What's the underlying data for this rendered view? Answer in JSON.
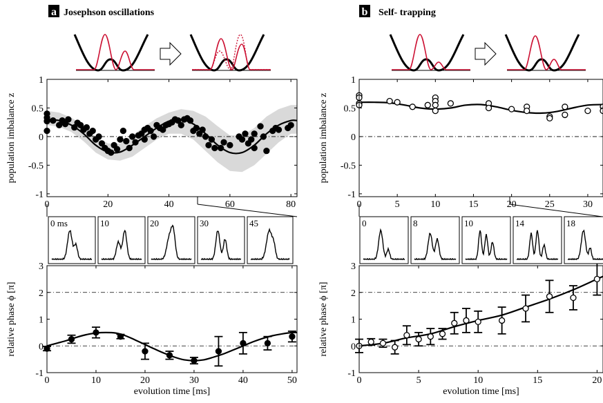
{
  "panels": [
    {
      "letter": "a",
      "title": "Josephson oscillations",
      "inset_labels": [
        "0 ms",
        "10",
        "20",
        "30",
        "45"
      ]
    },
    {
      "letter": "b",
      "title": "Self- trapping",
      "inset_labels": [
        "0",
        "8",
        "10",
        "14",
        "18"
      ]
    }
  ],
  "colors": {
    "data": "#000000",
    "band": "#d9d9d9",
    "density": "#cc1133",
    "potential": "#000000"
  },
  "chart_data": [
    {
      "type": "scatter",
      "panel": "a-top",
      "ylabel": "population imbalance z",
      "xlim": [
        0,
        82
      ],
      "ylim": [
        -1.05,
        1
      ],
      "xticks": [
        0,
        20,
        40,
        60,
        80
      ],
      "yticks": [
        -1,
        -0.5,
        0,
        0.5,
        1
      ],
      "yticklabels": [
        "-1",
        "-0.5",
        "0",
        "0.5",
        "1"
      ],
      "marker": "filled",
      "points": [
        [
          0,
          0.4
        ],
        [
          0,
          0.33
        ],
        [
          0,
          0.27
        ],
        [
          0,
          0.1
        ],
        [
          2,
          0.28
        ],
        [
          4,
          0.2
        ],
        [
          5,
          0.28
        ],
        [
          6,
          0.22
        ],
        [
          7,
          0.3
        ],
        [
          9,
          0.16
        ],
        [
          10,
          0.24
        ],
        [
          11,
          0.2
        ],
        [
          12,
          0.12
        ],
        [
          13,
          0.16
        ],
        [
          14,
          0.05
        ],
        [
          15,
          0.1
        ],
        [
          16,
          -0.05
        ],
        [
          17,
          0
        ],
        [
          18,
          -0.12
        ],
        [
          19,
          -0.2
        ],
        [
          20,
          -0.25
        ],
        [
          21,
          -0.28
        ],
        [
          22,
          -0.15
        ],
        [
          23,
          -0.22
        ],
        [
          24,
          -0.05
        ],
        [
          25,
          0.1
        ],
        [
          26,
          -0.08
        ],
        [
          27,
          -0.2
        ],
        [
          28,
          0
        ],
        [
          29,
          -0.1
        ],
        [
          30,
          0.02
        ],
        [
          31,
          0.05
        ],
        [
          32,
          0.12
        ],
        [
          32,
          -0.05
        ],
        [
          33,
          0.15
        ],
        [
          34,
          0.1
        ],
        [
          35,
          0
        ],
        [
          36,
          0.2
        ],
        [
          37,
          0.15
        ],
        [
          38,
          0.12
        ],
        [
          39,
          0.2
        ],
        [
          40,
          0.22
        ],
        [
          41,
          0.25
        ],
        [
          42,
          0.3
        ],
        [
          43,
          0.28
        ],
        [
          44,
          0.2
        ],
        [
          45,
          0.3
        ],
        [
          46,
          0.32
        ],
        [
          47,
          0.28
        ],
        [
          48,
          0.1
        ],
        [
          49,
          0.15
        ],
        [
          50,
          0.05
        ],
        [
          51,
          0.12
        ],
        [
          52,
          0
        ],
        [
          53,
          -0.15
        ],
        [
          54,
          -0.05
        ],
        [
          55,
          -0.2
        ],
        [
          57,
          -0.2
        ],
        [
          58,
          -0.1
        ],
        [
          60,
          -0.15
        ],
        [
          63,
          0
        ],
        [
          64,
          -0.05
        ],
        [
          65,
          0.05
        ],
        [
          66,
          -0.12
        ],
        [
          67,
          -0.05
        ],
        [
          68,
          0.05
        ],
        [
          68,
          -0.2
        ],
        [
          70,
          0.18
        ],
        [
          71,
          0
        ],
        [
          72,
          -0.25
        ],
        [
          74,
          0.1
        ],
        [
          75,
          0.15
        ],
        [
          76,
          0.12
        ],
        [
          79,
          0.15
        ],
        [
          80,
          0.2
        ]
      ],
      "fit": {
        "x": [
          0,
          4,
          8,
          12,
          16,
          20,
          24,
          28,
          32,
          36,
          40,
          44,
          48,
          52,
          56,
          60,
          64,
          68,
          72,
          76,
          80,
          82
        ],
        "y": [
          0.3,
          0.28,
          0.2,
          0.05,
          -0.15,
          -0.27,
          -0.27,
          -0.15,
          0.0,
          0.15,
          0.27,
          0.3,
          0.22,
          0.05,
          -0.15,
          -0.28,
          -0.28,
          -0.15,
          0.05,
          0.2,
          0.28,
          0.28
        ]
      },
      "band": {
        "x": [
          0,
          4,
          8,
          12,
          16,
          20,
          24,
          28,
          32,
          36,
          40,
          44,
          48,
          52,
          56,
          60,
          64,
          68,
          72,
          76,
          80,
          82
        ],
        "lower": [
          0.2,
          0.17,
          0.08,
          -0.08,
          -0.28,
          -0.4,
          -0.42,
          -0.35,
          -0.2,
          -0.05,
          0.05,
          0.05,
          -0.05,
          -0.25,
          -0.45,
          -0.6,
          -0.62,
          -0.5,
          -0.3,
          -0.1,
          0.05,
          0.05
        ],
        "upper": [
          0.45,
          0.42,
          0.33,
          0.2,
          0.0,
          -0.12,
          -0.12,
          0.02,
          0.18,
          0.32,
          0.42,
          0.48,
          0.45,
          0.35,
          0.18,
          0.02,
          0.02,
          0.15,
          0.35,
          0.48,
          0.55,
          0.55
        ]
      }
    },
    {
      "type": "scatter",
      "panel": "a-bottom",
      "xlabel": "evolution time [ms]",
      "ylabel": "relative phase ϕ [π]",
      "xlim": [
        0,
        51
      ],
      "ylim": [
        -1,
        3
      ],
      "xticks": [
        0,
        10,
        20,
        30,
        40,
        50
      ],
      "yticks": [
        -1,
        0,
        1,
        2,
        3
      ],
      "marker": "filled",
      "points": [
        {
          "x": 0,
          "y": -0.1,
          "err": 0.08
        },
        {
          "x": 5,
          "y": 0.25,
          "err": 0.15
        },
        {
          "x": 10,
          "y": 0.5,
          "err": 0.2
        },
        {
          "x": 15,
          "y": 0.35,
          "err": 0.08
        },
        {
          "x": 20,
          "y": -0.2,
          "err": 0.3
        },
        {
          "x": 25,
          "y": -0.35,
          "err": 0.15
        },
        {
          "x": 30,
          "y": -0.55,
          "err": 0.12
        },
        {
          "x": 35,
          "y": -0.2,
          "err": 0.55
        },
        {
          "x": 40,
          "y": 0.1,
          "err": 0.4
        },
        {
          "x": 45,
          "y": 0.1,
          "err": 0.25
        },
        {
          "x": 50,
          "y": 0.35,
          "err": 0.2
        }
      ],
      "fit": {
        "x": [
          0,
          2,
          4,
          6,
          8,
          10,
          12,
          14,
          16,
          18,
          20,
          22,
          24,
          26,
          28,
          30,
          32,
          34,
          36,
          38,
          40,
          42,
          44,
          46,
          48,
          50,
          51
        ],
        "y": [
          0,
          0.1,
          0.2,
          0.32,
          0.42,
          0.48,
          0.5,
          0.48,
          0.38,
          0.22,
          0.05,
          -0.12,
          -0.28,
          -0.42,
          -0.52,
          -0.55,
          -0.52,
          -0.42,
          -0.3,
          -0.15,
          0.0,
          0.15,
          0.28,
          0.38,
          0.45,
          0.5,
          0.5
        ]
      }
    },
    {
      "type": "scatter",
      "panel": "b-top",
      "ylabel": "population imbalance z",
      "xlim": [
        0,
        32
      ],
      "ylim": [
        -1.05,
        1
      ],
      "xticks": [
        0,
        5,
        10,
        15,
        20,
        25,
        30
      ],
      "yticks": [
        -1,
        -0.5,
        0,
        0.5,
        1
      ],
      "yticklabels": [
        "-1",
        "-0.5",
        "0",
        "0.5",
        "1"
      ],
      "marker": "open",
      "points": [
        [
          0,
          0.72
        ],
        [
          0,
          0.68
        ],
        [
          0,
          0.58
        ],
        [
          0,
          0.55
        ],
        [
          4,
          0.62
        ],
        [
          5,
          0.6
        ],
        [
          7,
          0.52
        ],
        [
          9,
          0.55
        ],
        [
          10,
          0.68
        ],
        [
          10,
          0.62
        ],
        [
          10,
          0.55
        ],
        [
          10,
          0.45
        ],
        [
          12,
          0.58
        ],
        [
          17,
          0.58
        ],
        [
          17,
          0.5
        ],
        [
          20,
          0.48
        ],
        [
          22,
          0.52
        ],
        [
          22,
          0.45
        ],
        [
          25,
          0.35
        ],
        [
          25,
          0.32
        ],
        [
          27,
          0.52
        ],
        [
          27,
          0.38
        ],
        [
          30,
          0.45
        ],
        [
          32,
          0.52
        ],
        [
          32,
          0.45
        ]
      ],
      "fit": {
        "x": [
          0,
          2,
          4,
          6,
          8,
          10,
          12,
          14,
          16,
          18,
          20,
          22,
          24,
          26,
          28,
          30,
          32
        ],
        "y": [
          0.6,
          0.6,
          0.59,
          0.55,
          0.5,
          0.48,
          0.5,
          0.55,
          0.56,
          0.52,
          0.46,
          0.42,
          0.41,
          0.44,
          0.5,
          0.55,
          0.56
        ]
      }
    },
    {
      "type": "scatter",
      "panel": "b-bottom",
      "xlabel": "evolution time [ms]",
      "ylabel": "relative phase ϕ [π]",
      "xlim": [
        0,
        20.5
      ],
      "ylim": [
        -1,
        3
      ],
      "xticks": [
        0,
        5,
        10,
        15,
        20
      ],
      "yticks": [
        -1,
        0,
        1,
        2,
        3
      ],
      "marker": "open",
      "points": [
        {
          "x": 0,
          "y": 0,
          "err": 0.25
        },
        {
          "x": 1,
          "y": 0.15,
          "err": 0.12
        },
        {
          "x": 2,
          "y": 0.1,
          "err": 0.15
        },
        {
          "x": 3,
          "y": -0.05,
          "err": 0.25
        },
        {
          "x": 4,
          "y": 0.4,
          "err": 0.35
        },
        {
          "x": 5,
          "y": 0.25,
          "err": 0.25
        },
        {
          "x": 6,
          "y": 0.35,
          "err": 0.3
        },
        {
          "x": 7,
          "y": 0.45,
          "err": 0.2
        },
        {
          "x": 8,
          "y": 0.85,
          "err": 0.4
        },
        {
          "x": 9,
          "y": 0.95,
          "err": 0.45
        },
        {
          "x": 10,
          "y": 0.9,
          "err": 0.4
        },
        {
          "x": 12,
          "y": 0.95,
          "err": 0.5
        },
        {
          "x": 14,
          "y": 1.4,
          "err": 0.5
        },
        {
          "x": 16,
          "y": 1.85,
          "err": 0.6
        },
        {
          "x": 18,
          "y": 1.8,
          "err": 0.45
        },
        {
          "x": 20,
          "y": 2.5,
          "err": 0.6
        }
      ],
      "fit": {
        "x": [
          0,
          2,
          4,
          6,
          8,
          10,
          12,
          14,
          16,
          18,
          20,
          20.5
        ],
        "y": [
          0.0,
          0.1,
          0.3,
          0.45,
          0.72,
          0.95,
          1.15,
          1.45,
          1.75,
          2.1,
          2.5,
          2.6
        ]
      }
    }
  ]
}
